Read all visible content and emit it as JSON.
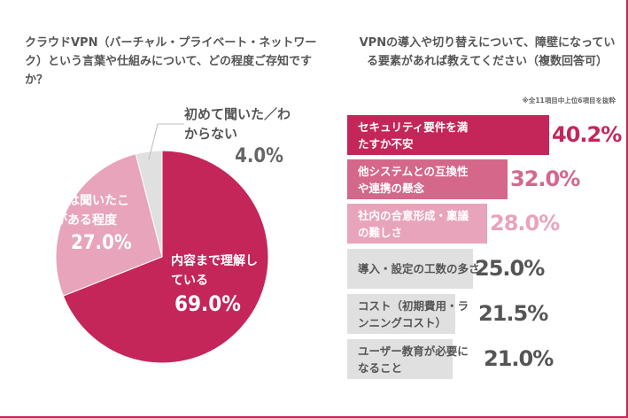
{
  "chart_data": [
    {
      "type": "pie",
      "title": "クラウドVPN（バーチャル・プライベート・ネットワーク）という言葉や仕組みについて、どの程度ご存知ですか？",
      "slices": [
        {
          "label": "内容まで理解している",
          "value": 69.0,
          "display": "69.0%",
          "color": "#c4265a"
        },
        {
          "label": "名前は聞いたことがある程度",
          "value": 27.0,
          "display": "27.0%",
          "color": "#e8a4ba"
        },
        {
          "label": "初めて聞いた／わからない",
          "value": 4.0,
          "display": "4.0%",
          "color": "#e0e0e0"
        }
      ]
    },
    {
      "type": "bar",
      "orientation": "horizontal",
      "title": "VPNの導入や切り替えについて、障壁になっている要素があれば教えてください（複数回答可）",
      "note": "※全11項目中上位6項目を抜粋",
      "bars": [
        {
          "label": "セキュリティ要件を満たすか不安",
          "value": 40.2,
          "display": "40.2%",
          "color": "#c4265a",
          "text_color": "#ffffff",
          "value_color": "#c4265a"
        },
        {
          "label": "他システムとの互換性や連携の懸念",
          "value": 32.0,
          "display": "32.0%",
          "color": "#d4678a",
          "text_color": "#ffffff",
          "value_color": "#d4678a"
        },
        {
          "label": "社内の合意形成・稟議の難しさ",
          "value": 28.0,
          "display": "28.0%",
          "color": "#e8a4ba",
          "text_color": "#ffffff",
          "value_color": "#e8a4ba"
        },
        {
          "label": "導入・設定の工数の多さ",
          "value": 25.0,
          "display": "25.0%",
          "color": "#e0e0e0",
          "text_color": "#555555",
          "value_color": "#555555"
        },
        {
          "label": "コスト（初期費用・ランニングコスト）",
          "value": 21.5,
          "display": "21.5%",
          "color": "#e0e0e0",
          "text_color": "#555555",
          "value_color": "#555555"
        },
        {
          "label": "ユーザー教育が必要になること",
          "value": 21.0,
          "display": "21.0%",
          "color": "#e0e0e0",
          "text_color": "#555555",
          "value_color": "#555555"
        }
      ]
    }
  ]
}
